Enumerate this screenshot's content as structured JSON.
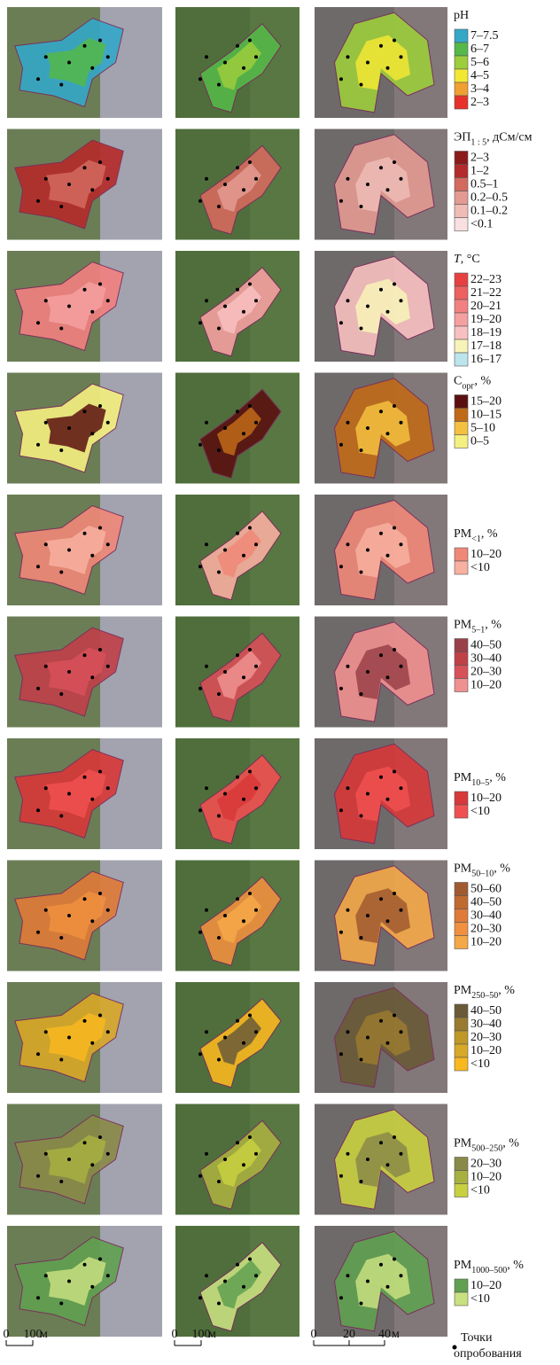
{
  "rows": [
    {
      "title": [
        {
          "text": "pH"
        }
      ],
      "items": [
        {
          "label": "7–7.5",
          "color": "#35a8c8"
        },
        {
          "label": "6–7",
          "color": "#55b848"
        },
        {
          "label": "5–6",
          "color": "#9ccd3c"
        },
        {
          "label": "4–5",
          "color": "#f2e834"
        },
        {
          "label": "3–4",
          "color": "#f0a030"
        },
        {
          "label": "2–3",
          "color": "#e8302a"
        }
      ]
    },
    {
      "title": [
        {
          "text": "ЭП"
        },
        {
          "text": "1 : 5",
          "sub": true
        },
        {
          "text": ", дСм/см"
        }
      ],
      "items": [
        {
          "label": "2–3",
          "color": "#8b1a1a"
        },
        {
          "label": "1–2",
          "color": "#b52a2a"
        },
        {
          "label": "0.5–1",
          "color": "#d46a5e"
        },
        {
          "label": "0.2–0.5",
          "color": "#e39a92"
        },
        {
          "label": "0.1–0.2",
          "color": "#efbcb6"
        },
        {
          "label": "<0.1",
          "color": "#f9e0e0"
        }
      ]
    },
    {
      "title": [
        {
          "text": "T",
          "italic": true
        },
        {
          "text": ", °C"
        }
      ],
      "items": [
        {
          "label": "22–23",
          "color": "#e84040"
        },
        {
          "label": "21–22",
          "color": "#ee6060"
        },
        {
          "label": "20–21",
          "color": "#f28080"
        },
        {
          "label": "19–20",
          "color": "#f5a0a0"
        },
        {
          "label": "18–19",
          "color": "#f8c0c0"
        },
        {
          "label": "17–18",
          "color": "#f8f4b8"
        },
        {
          "label": "16–17",
          "color": "#bce4ec"
        }
      ]
    },
    {
      "title": [
        {
          "text": "C"
        },
        {
          "text": "орг",
          "sub": true
        },
        {
          "text": ", %"
        }
      ],
      "items": [
        {
          "label": "15–20",
          "color": "#5a1010"
        },
        {
          "label": "10–15",
          "color": "#c06a18"
        },
        {
          "label": "5–10",
          "color": "#f4c040"
        },
        {
          "label": "0–5",
          "color": "#f4f080"
        }
      ]
    },
    {
      "title": [
        {
          "text": "PM"
        },
        {
          "text": "<1",
          "sub": true
        },
        {
          "text": ", %"
        }
      ],
      "items": [
        {
          "label": "10–20",
          "color": "#f08878"
        },
        {
          "label": "<10",
          "color": "#f8b0a0"
        }
      ]
    },
    {
      "title": [
        {
          "text": "PM"
        },
        {
          "text": "5–1",
          "sub": true
        },
        {
          "text": ", %"
        }
      ],
      "items": [
        {
          "label": "40–50",
          "color": "#9a4048"
        },
        {
          "label": "30–40",
          "color": "#c04048"
        },
        {
          "label": "20–30",
          "color": "#d85058"
        },
        {
          "label": "10–20",
          "color": "#f09090"
        }
      ]
    },
    {
      "title": [
        {
          "text": "PM"
        },
        {
          "text": "10–5",
          "sub": true
        },
        {
          "text": ", %"
        }
      ],
      "items": [
        {
          "label": "10–20",
          "color": "#d83838"
        },
        {
          "label": "<10",
          "color": "#f05050"
        }
      ]
    },
    {
      "title": [
        {
          "text": "PM"
        },
        {
          "text": "50–10",
          "sub": true
        },
        {
          "text": ", %"
        }
      ],
      "items": [
        {
          "label": "50–60",
          "color": "#a05a30"
        },
        {
          "label": "40–50",
          "color": "#c06a30"
        },
        {
          "label": "30–40",
          "color": "#e07a38"
        },
        {
          "label": "20–30",
          "color": "#f09040"
        },
        {
          "label": "10–20",
          "color": "#f4a848"
        }
      ]
    },
    {
      "title": [
        {
          "text": "PM"
        },
        {
          "text": "250–50",
          "sub": true
        },
        {
          "text": ", %"
        }
      ],
      "items": [
        {
          "label": "40–50",
          "color": "#6a5a38"
        },
        {
          "label": "30–40",
          "color": "#9a7a30"
        },
        {
          "label": "20–30",
          "color": "#c09828"
        },
        {
          "label": "10–20",
          "color": "#d8a828"
        },
        {
          "label": "<10",
          "color": "#f8b820"
        }
      ]
    },
    {
      "title": [
        {
          "text": "PM"
        },
        {
          "text": "500–250",
          "sub": true
        },
        {
          "text": ", %"
        }
      ],
      "items": [
        {
          "label": "20–30",
          "color": "#8a8a48"
        },
        {
          "label": "10–20",
          "color": "#a8b040"
        },
        {
          "label": "<10",
          "color": "#c8d040"
        }
      ]
    },
    {
      "title": [
        {
          "text": "PM"
        },
        {
          "text": "1000–500",
          "sub": true
        },
        {
          "text": ", %"
        }
      ],
      "items": [
        {
          "label": "10–20",
          "color": "#60a050"
        },
        {
          "label": "<10",
          "color": "#c8e080"
        }
      ]
    }
  ],
  "scale_bars": [
    {
      "labels": [
        "0",
        "100"
      ],
      "unit": "м"
    },
    {
      "labels": [
        "0",
        "100"
      ],
      "unit": "м"
    },
    {
      "labels": [
        "0",
        "20",
        "40"
      ],
      "unit": "м"
    }
  ],
  "sampling_points": [
    "Точки",
    "опробования"
  ]
}
